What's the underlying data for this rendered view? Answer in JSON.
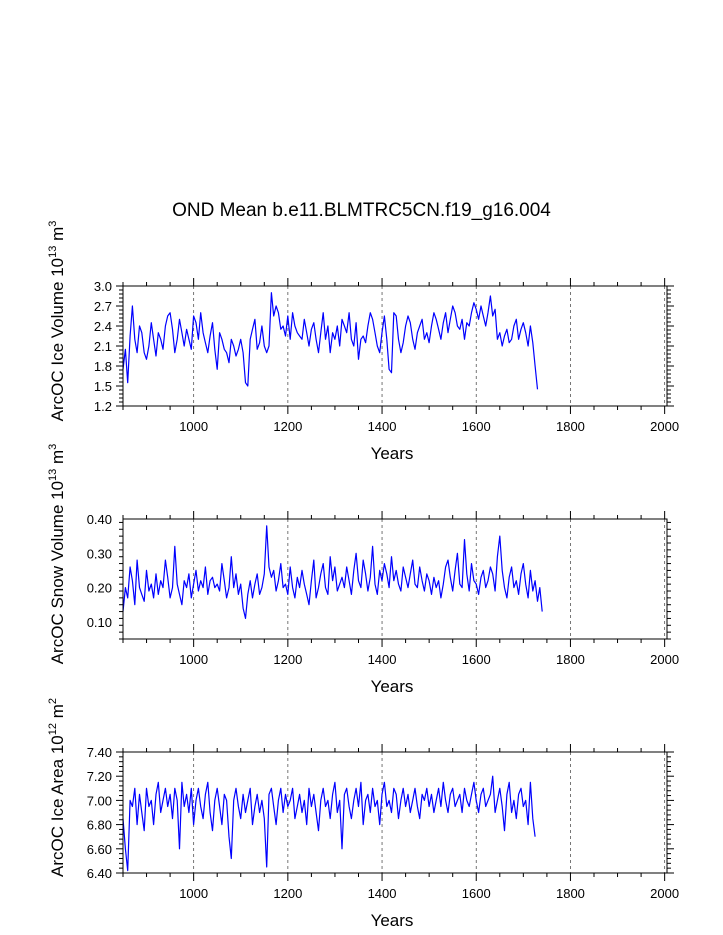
{
  "title": "OND Mean b.e11.BLMTRC5CN.f19_g16.004",
  "colors": {
    "line": "#0000ff",
    "axis": "#000000",
    "grid": "#555555"
  },
  "chart_data": [
    {
      "type": "line",
      "ylabel": "ArcOC Ice Volume 10",
      "ylabel_exp": "13",
      "ylabel_unit": " m",
      "ylabel_unit_exp": "3",
      "xlabel": "Years",
      "xlim": [
        850,
        2005
      ],
      "ylim": [
        1.2,
        3.0
      ],
      "xticks": [
        1000,
        1200,
        1400,
        1600,
        1800,
        2000
      ],
      "xtick_labels": [
        "1000",
        "1200",
        "1400",
        "1600",
        "1800",
        "2000"
      ],
      "yticks": [
        1.2,
        1.5,
        1.8,
        2.1,
        2.4,
        2.7,
        3.0
      ],
      "ytick_labels": [
        "1.2",
        "1.5",
        "1.8",
        "2.1",
        "2.4",
        "2.7",
        "3.0"
      ],
      "grid": "vertical dashed at x ticks",
      "series": [
        {
          "name": "ArcOC Ice Volume",
          "x_start": 850,
          "x_step": 5,
          "values": [
            1.75,
            2.05,
            1.55,
            2.25,
            2.7,
            2.2,
            2.0,
            2.4,
            2.3,
            2.0,
            1.9,
            2.1,
            2.45,
            2.2,
            1.95,
            2.3,
            2.2,
            2.05,
            2.4,
            2.55,
            2.6,
            2.35,
            2.0,
            2.2,
            2.5,
            2.3,
            2.1,
            2.35,
            2.2,
            2.05,
            2.55,
            2.45,
            2.2,
            2.6,
            2.3,
            2.15,
            2.0,
            2.25,
            2.45,
            2.05,
            1.75,
            2.3,
            2.2,
            2.05,
            2.0,
            1.85,
            2.2,
            2.1,
            1.95,
            2.05,
            2.2,
            2.0,
            1.55,
            1.5,
            2.2,
            2.35,
            2.5,
            2.05,
            2.15,
            2.4,
            2.1,
            2.0,
            2.1,
            2.9,
            2.55,
            2.7,
            2.6,
            2.35,
            2.4,
            2.25,
            2.55,
            2.2,
            2.6,
            2.4,
            2.3,
            2.25,
            2.2,
            2.5,
            2.3,
            2.1,
            2.35,
            2.45,
            2.2,
            2.0,
            2.3,
            2.6,
            2.2,
            2.4,
            2.0,
            2.3,
            2.2,
            2.4,
            2.1,
            2.5,
            2.4,
            2.3,
            2.6,
            2.2,
            2.1,
            2.45,
            1.9,
            2.2,
            2.25,
            2.15,
            2.4,
            2.6,
            2.5,
            2.3,
            2.1,
            2.0,
            2.3,
            2.55,
            2.2,
            1.75,
            1.7,
            2.6,
            2.55,
            2.2,
            2.0,
            2.15,
            2.4,
            2.55,
            2.45,
            2.2,
            2.05,
            2.3,
            2.4,
            2.5,
            2.2,
            2.3,
            2.15,
            2.4,
            2.6,
            2.5,
            2.35,
            2.2,
            2.45,
            2.6,
            2.3,
            2.5,
            2.7,
            2.6,
            2.4,
            2.35,
            2.5,
            2.2,
            2.45,
            2.4,
            2.6,
            2.75,
            2.65,
            2.5,
            2.7,
            2.55,
            2.4,
            2.6,
            2.85,
            2.55,
            2.65,
            2.2,
            2.3,
            2.1,
            2.25,
            2.35,
            2.15,
            2.2,
            2.4,
            2.5,
            2.2,
            2.35,
            2.45,
            2.3,
            2.1,
            2.4,
            2.15,
            1.8,
            1.45
          ]
        }
      ]
    },
    {
      "type": "line",
      "ylabel": "ArcOC Snow Volume 10",
      "ylabel_exp": "13",
      "ylabel_unit": " m",
      "ylabel_unit_exp": "3",
      "xlabel": "Years",
      "xlim": [
        850,
        2005
      ],
      "ylim": [
        0.05,
        0.4
      ],
      "xticks": [
        1000,
        1200,
        1400,
        1600,
        1800,
        2000
      ],
      "xtick_labels": [
        "1000",
        "1200",
        "1400",
        "1600",
        "1800",
        "2000"
      ],
      "yticks": [
        0.1,
        0.2,
        0.3,
        0.4
      ],
      "ytick_labels": [
        "0.10",
        "0.20",
        "0.30",
        "0.40"
      ],
      "grid": "vertical dashed at x ticks",
      "series": [
        {
          "name": "ArcOC Snow Volume",
          "x_start": 850,
          "x_step": 5,
          "values": [
            0.13,
            0.2,
            0.17,
            0.26,
            0.22,
            0.15,
            0.28,
            0.2,
            0.18,
            0.16,
            0.25,
            0.19,
            0.21,
            0.17,
            0.24,
            0.18,
            0.22,
            0.2,
            0.28,
            0.23,
            0.17,
            0.2,
            0.32,
            0.21,
            0.18,
            0.15,
            0.22,
            0.2,
            0.24,
            0.17,
            0.21,
            0.25,
            0.19,
            0.22,
            0.2,
            0.26,
            0.18,
            0.22,
            0.23,
            0.2,
            0.21,
            0.19,
            0.27,
            0.22,
            0.17,
            0.2,
            0.29,
            0.2,
            0.24,
            0.18,
            0.21,
            0.14,
            0.11,
            0.18,
            0.22,
            0.17,
            0.21,
            0.24,
            0.18,
            0.2,
            0.24,
            0.38,
            0.26,
            0.23,
            0.25,
            0.19,
            0.22,
            0.27,
            0.2,
            0.21,
            0.18,
            0.26,
            0.2,
            0.17,
            0.23,
            0.2,
            0.25,
            0.21,
            0.18,
            0.15,
            0.22,
            0.28,
            0.17,
            0.2,
            0.24,
            0.27,
            0.2,
            0.18,
            0.29,
            0.22,
            0.26,
            0.19,
            0.21,
            0.23,
            0.2,
            0.26,
            0.22,
            0.18,
            0.25,
            0.3,
            0.22,
            0.2,
            0.28,
            0.24,
            0.19,
            0.23,
            0.32,
            0.21,
            0.18,
            0.25,
            0.22,
            0.27,
            0.24,
            0.2,
            0.29,
            0.22,
            0.25,
            0.21,
            0.19,
            0.26,
            0.23,
            0.2,
            0.24,
            0.28,
            0.21,
            0.2,
            0.26,
            0.22,
            0.19,
            0.24,
            0.22,
            0.18,
            0.23,
            0.2,
            0.22,
            0.17,
            0.21,
            0.26,
            0.28,
            0.23,
            0.19,
            0.25,
            0.3,
            0.21,
            0.2,
            0.34,
            0.24,
            0.19,
            0.27,
            0.22,
            0.21,
            0.18,
            0.23,
            0.25,
            0.2,
            0.22,
            0.26,
            0.24,
            0.19,
            0.29,
            0.35,
            0.25,
            0.2,
            0.17,
            0.23,
            0.26,
            0.2,
            0.22,
            0.18,
            0.24,
            0.27,
            0.21,
            0.17,
            0.25,
            0.19,
            0.22,
            0.16,
            0.2,
            0.13
          ]
        }
      ]
    },
    {
      "type": "line",
      "ylabel": "ArcOC Ice Area 10",
      "ylabel_exp": "12",
      "ylabel_unit": " m",
      "ylabel_unit_exp": "2",
      "xlabel": "Years",
      "xlim": [
        850,
        2005
      ],
      "ylim": [
        6.4,
        7.4
      ],
      "xticks": [
        1000,
        1200,
        1400,
        1600,
        1800,
        2000
      ],
      "xtick_labels": [
        "1000",
        "1200",
        "1400",
        "1600",
        "1800",
        "2000"
      ],
      "yticks": [
        6.4,
        6.6,
        6.8,
        7.0,
        7.2,
        7.4
      ],
      "ytick_labels": [
        "6.40",
        "6.60",
        "6.80",
        "7.00",
        "7.20",
        "7.40"
      ],
      "grid": "vertical dashed at x ticks",
      "series": [
        {
          "name": "ArcOC Ice Area",
          "x_start": 850,
          "x_step": 5,
          "values": [
            6.85,
            6.6,
            6.42,
            7.0,
            6.95,
            7.1,
            6.8,
            7.05,
            6.9,
            6.75,
            7.1,
            6.95,
            7.0,
            6.8,
            7.05,
            7.15,
            6.9,
            7.0,
            7.1,
            6.95,
            7.05,
            6.85,
            7.1,
            7.0,
            6.6,
            7.15,
            6.95,
            7.05,
            6.9,
            7.1,
            6.8,
            7.0,
            7.1,
            6.95,
            6.85,
            7.05,
            7.15,
            6.9,
            6.75,
            7.0,
            7.1,
            6.95,
            6.8,
            7.05,
            7.0,
            6.7,
            6.52,
            7.0,
            7.1,
            6.95,
            6.85,
            7.05,
            6.9,
            7.0,
            7.1,
            6.8,
            6.95,
            7.05,
            6.9,
            7.0,
            6.85,
            6.45,
            7.05,
            7.1,
            6.95,
            6.8,
            7.0,
            7.1,
            6.9,
            7.05,
            6.95,
            7.0,
            7.1,
            6.85,
            6.95,
            7.05,
            6.9,
            7.0,
            6.8,
            7.1,
            6.95,
            7.05,
            6.9,
            6.75,
            7.0,
            7.1,
            6.95,
            7.0,
            6.85,
            7.05,
            7.15,
            6.9,
            7.0,
            6.6,
            7.05,
            7.1,
            6.95,
            6.85,
            7.0,
            7.1,
            6.95,
            7.15,
            6.8,
            7.0,
            7.05,
            6.9,
            7.1,
            6.95,
            7.0,
            6.8,
            7.05,
            7.15,
            6.95,
            7.0,
            6.9,
            7.1,
            7.05,
            6.85,
            7.0,
            7.1,
            6.95,
            7.05,
            6.9,
            7.0,
            7.1,
            6.95,
            6.85,
            7.05,
            7.0,
            7.1,
            6.95,
            7.05,
            6.9,
            7.0,
            7.1,
            6.95,
            7.15,
            7.0,
            6.9,
            7.05,
            7.1,
            6.95,
            7.0,
            7.05,
            6.9,
            7.1,
            7.0,
            6.95,
            7.05,
            7.15,
            7.0,
            6.9,
            7.05,
            7.1,
            6.95,
            7.0,
            7.05,
            7.2,
            6.9,
            7.0,
            7.1,
            6.95,
            6.75,
            7.05,
            7.15,
            6.9,
            7.0,
            6.85,
            7.05,
            7.1,
            6.95,
            7.0,
            6.8,
            7.15,
            6.85,
            6.7
          ]
        }
      ]
    }
  ]
}
